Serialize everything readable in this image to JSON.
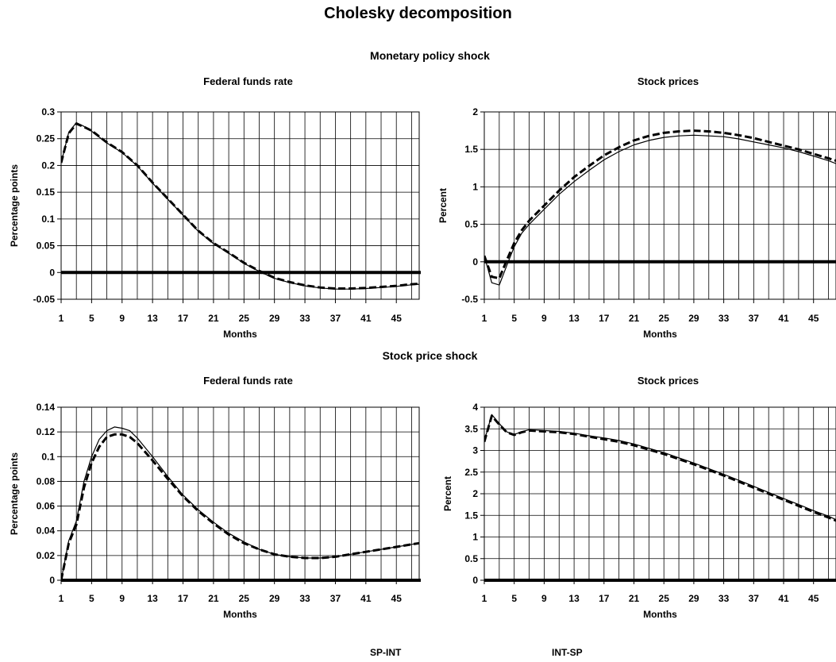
{
  "title": "Cholesky decomposition",
  "sections": {
    "top": "Monetary policy shock",
    "bottom": "Stock price shock"
  },
  "legend": {
    "dashed": "SP-INT",
    "solid": "INT-SP"
  },
  "chart_data": [
    {
      "type": "line",
      "title": "Federal funds rate",
      "xlabel": "Months",
      "ylabel": "Percentage points",
      "xlim": [
        1,
        48
      ],
      "ylim": [
        -0.05,
        0.3
      ],
      "yticks": [
        -0.05,
        0,
        0.05,
        0.1,
        0.15,
        0.2,
        0.25,
        0.3
      ],
      "ytick_labels": [
        "-0.05",
        "0",
        "0.05",
        "0.1",
        "0.15",
        "0.2",
        "0.25",
        "0.3"
      ],
      "xticks": [
        1,
        5,
        9,
        13,
        17,
        21,
        25,
        29,
        33,
        37,
        41,
        45
      ],
      "grid": true,
      "series": [
        {
          "name": "SP-INT",
          "style": "dashed",
          "x": [
            1,
            2,
            3,
            4,
            5,
            7,
            9,
            11,
            13,
            15,
            17,
            19,
            21,
            23,
            25,
            27,
            29,
            31,
            33,
            35,
            37,
            39,
            41,
            43,
            45,
            47,
            48
          ],
          "y": [
            0.205,
            0.26,
            0.278,
            0.272,
            0.265,
            0.243,
            0.225,
            0.2,
            0.168,
            0.138,
            0.108,
            0.078,
            0.055,
            0.037,
            0.018,
            0.003,
            -0.01,
            -0.018,
            -0.024,
            -0.028,
            -0.03,
            -0.03,
            -0.029,
            -0.027,
            -0.025,
            -0.022,
            -0.021
          ]
        },
        {
          "name": "INT-SP",
          "style": "solid",
          "x": [
            1,
            2,
            3,
            4,
            5,
            7,
            9,
            11,
            13,
            15,
            17,
            19,
            21,
            23,
            25,
            27,
            29,
            31,
            33,
            35,
            37,
            39,
            41,
            43,
            45,
            47,
            48
          ],
          "y": [
            0.205,
            0.262,
            0.28,
            0.273,
            0.264,
            0.242,
            0.224,
            0.199,
            0.167,
            0.137,
            0.107,
            0.077,
            0.054,
            0.036,
            0.017,
            0.002,
            -0.011,
            -0.019,
            -0.025,
            -0.029,
            -0.031,
            -0.031,
            -0.03,
            -0.028,
            -0.026,
            -0.023,
            -0.022
          ]
        }
      ]
    },
    {
      "type": "line",
      "title": "Stock prices",
      "xlabel": "Months",
      "ylabel": "Percent",
      "xlim": [
        1,
        48
      ],
      "ylim": [
        -0.5,
        2
      ],
      "yticks": [
        -0.5,
        0,
        0.5,
        1,
        1.5,
        2
      ],
      "ytick_labels": [
        "-0.5",
        "0",
        "0.5",
        "1",
        "1.5",
        "2"
      ],
      "xticks": [
        1,
        5,
        9,
        13,
        17,
        21,
        25,
        29,
        33,
        37,
        41,
        45
      ],
      "grid": true,
      "series": [
        {
          "name": "SP-INT",
          "style": "dashed",
          "x": [
            1,
            2,
            3,
            4,
            5,
            6,
            7,
            9,
            11,
            13,
            15,
            17,
            19,
            21,
            23,
            25,
            27,
            29,
            31,
            33,
            35,
            37,
            39,
            41,
            43,
            45,
            47,
            48
          ],
          "y": [
            0.08,
            -0.2,
            -0.22,
            0.02,
            0.25,
            0.42,
            0.55,
            0.75,
            0.95,
            1.13,
            1.28,
            1.42,
            1.53,
            1.62,
            1.68,
            1.72,
            1.74,
            1.75,
            1.74,
            1.72,
            1.69,
            1.65,
            1.6,
            1.55,
            1.5,
            1.44,
            1.38,
            1.35
          ]
        },
        {
          "name": "INT-SP",
          "style": "solid",
          "x": [
            1,
            2,
            3,
            4,
            5,
            6,
            7,
            9,
            11,
            13,
            15,
            17,
            19,
            21,
            23,
            25,
            27,
            29,
            31,
            33,
            35,
            37,
            39,
            41,
            43,
            45,
            47,
            48
          ],
          "y": [
            0.08,
            -0.28,
            -0.31,
            -0.05,
            0.2,
            0.38,
            0.5,
            0.7,
            0.9,
            1.07,
            1.22,
            1.36,
            1.47,
            1.56,
            1.62,
            1.66,
            1.68,
            1.69,
            1.68,
            1.67,
            1.64,
            1.6,
            1.56,
            1.52,
            1.47,
            1.41,
            1.35,
            1.31
          ]
        }
      ]
    },
    {
      "type": "line",
      "title": "Federal funds rate",
      "xlabel": "Months",
      "ylabel": "Percentage points",
      "xlim": [
        1,
        48
      ],
      "ylim": [
        0,
        0.14
      ],
      "yticks": [
        0,
        0.02,
        0.04,
        0.06,
        0.08,
        0.1,
        0.12,
        0.14
      ],
      "ytick_labels": [
        "0",
        "0.02",
        "0.04",
        "0.06",
        "0.08",
        "0.1",
        "0.12",
        "0.14"
      ],
      "xticks": [
        1,
        5,
        9,
        13,
        17,
        21,
        25,
        29,
        33,
        37,
        41,
        45
      ],
      "grid": true,
      "series": [
        {
          "name": "SP-INT",
          "style": "dashed",
          "x": [
            1,
            2,
            3,
            4,
            5,
            6,
            7,
            8,
            9,
            10,
            11,
            13,
            15,
            17,
            19,
            21,
            23,
            25,
            27,
            29,
            31,
            33,
            35,
            37,
            39,
            41,
            43,
            45,
            47,
            48
          ],
          "y": [
            0.0,
            0.03,
            0.045,
            0.075,
            0.095,
            0.108,
            0.116,
            0.118,
            0.118,
            0.116,
            0.111,
            0.097,
            0.082,
            0.068,
            0.056,
            0.046,
            0.037,
            0.03,
            0.025,
            0.021,
            0.019,
            0.018,
            0.018,
            0.019,
            0.021,
            0.023,
            0.025,
            0.027,
            0.029,
            0.03
          ]
        },
        {
          "name": "INT-SP",
          "style": "solid",
          "x": [
            1,
            2,
            3,
            4,
            5,
            6,
            7,
            8,
            9,
            10,
            11,
            13,
            15,
            17,
            19,
            21,
            23,
            25,
            27,
            29,
            31,
            33,
            35,
            37,
            39,
            41,
            43,
            45,
            47,
            48
          ],
          "y": [
            0.0,
            0.032,
            0.048,
            0.08,
            0.1,
            0.114,
            0.121,
            0.124,
            0.123,
            0.121,
            0.115,
            0.1,
            0.084,
            0.069,
            0.057,
            0.047,
            0.038,
            0.031,
            0.025,
            0.021,
            0.019,
            0.018,
            0.018,
            0.019,
            0.021,
            0.023,
            0.025,
            0.027,
            0.029,
            0.03
          ]
        }
      ]
    },
    {
      "type": "line",
      "title": "Stock prices",
      "xlabel": "Months",
      "ylabel": "Percent",
      "xlim": [
        1,
        48
      ],
      "ylim": [
        0,
        4
      ],
      "yticks": [
        0,
        0.5,
        1,
        1.5,
        2,
        2.5,
        3,
        3.5,
        4
      ],
      "ytick_labels": [
        "0",
        "0.5",
        "1",
        "1.5",
        "2",
        "2.5",
        "3",
        "3.5",
        "4"
      ],
      "xticks": [
        1,
        5,
        9,
        13,
        17,
        21,
        25,
        29,
        33,
        37,
        41,
        45
      ],
      "grid": true,
      "series": [
        {
          "name": "SP-INT",
          "style": "dashed",
          "x": [
            1,
            2,
            3,
            4,
            5,
            6,
            7,
            9,
            11,
            13,
            15,
            17,
            19,
            21,
            23,
            25,
            27,
            29,
            31,
            33,
            35,
            37,
            39,
            41,
            43,
            45,
            47,
            48
          ],
          "y": [
            3.2,
            3.8,
            3.6,
            3.42,
            3.36,
            3.42,
            3.46,
            3.44,
            3.42,
            3.38,
            3.32,
            3.26,
            3.2,
            3.12,
            3.02,
            2.92,
            2.8,
            2.68,
            2.55,
            2.42,
            2.28,
            2.14,
            2.0,
            1.86,
            1.72,
            1.58,
            1.45,
            1.38
          ]
        },
        {
          "name": "INT-SP",
          "style": "solid",
          "x": [
            1,
            2,
            3,
            4,
            5,
            6,
            7,
            9,
            11,
            13,
            15,
            17,
            19,
            21,
            23,
            25,
            27,
            29,
            31,
            33,
            35,
            37,
            39,
            41,
            43,
            45,
            47,
            48
          ],
          "y": [
            3.22,
            3.83,
            3.62,
            3.43,
            3.37,
            3.43,
            3.48,
            3.46,
            3.44,
            3.4,
            3.34,
            3.29,
            3.23,
            3.15,
            3.05,
            2.95,
            2.83,
            2.71,
            2.58,
            2.45,
            2.31,
            2.17,
            2.03,
            1.89,
            1.75,
            1.61,
            1.48,
            1.4
          ]
        }
      ]
    }
  ]
}
